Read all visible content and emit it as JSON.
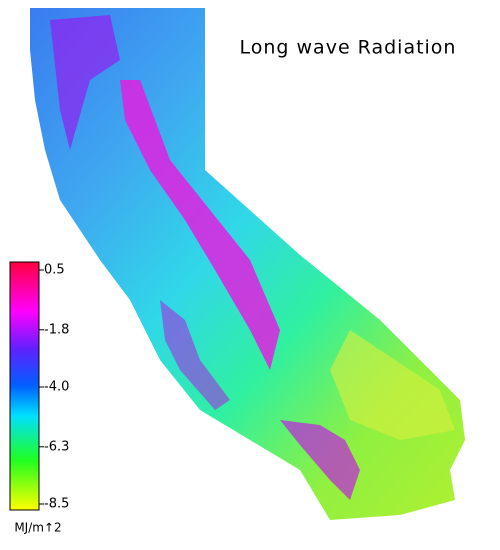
{
  "title": "Long wave Radiation",
  "colorbar": {
    "range": [
      -8.5,
      0.5
    ],
    "ticks": [
      0.5,
      -1.8,
      {
        "value": -4,
        "label": "-4.0"
      },
      -6.3,
      -8.5
    ],
    "unit": "MJ/m↑2"
  }
}
